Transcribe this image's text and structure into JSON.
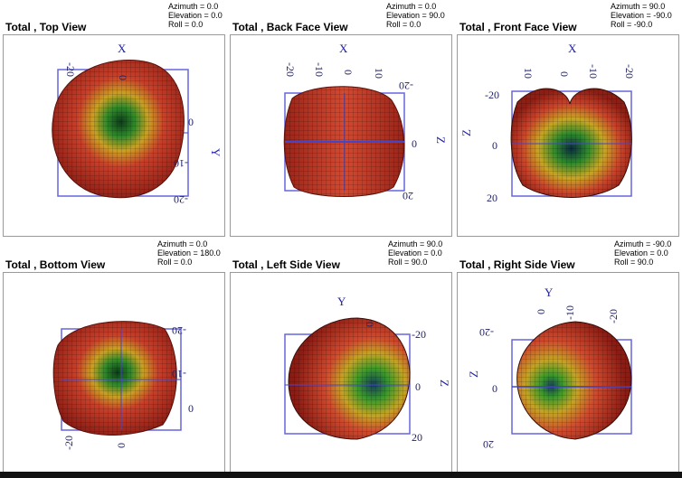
{
  "panels": [
    {
      "title": "Total , Top View",
      "l1": "Azimuth = 0.0",
      "l2": "Elevation = 0.0",
      "l3": "Roll = 0.0",
      "axis_a": "X",
      "axis_b": "Y",
      "ticks_a": [
        "-20",
        "0"
      ],
      "ticks_b": [
        "0",
        "-10",
        "-20"
      ]
    },
    {
      "title": "Total , Back Face View",
      "l1": "Azimuth = 0.0",
      "l2": "Elevation = 90.0",
      "l3": "Roll = 0.0",
      "axis_a": "X",
      "axis_b": "Z",
      "ticks_a": [
        "-20",
        "-10",
        "0",
        "10"
      ],
      "ticks_b": [
        "-20",
        "0",
        "20"
      ]
    },
    {
      "title": "Total , Front Face View",
      "l1": "Azimuth = 90.0",
      "l2": "Elevation = -90.0",
      "l3": "Roll = -90.0",
      "axis_a": "X",
      "axis_b": "Z",
      "ticks_a": [
        "10",
        "0",
        "-10",
        "-20"
      ],
      "ticks_b": [
        "-20",
        "0",
        "20"
      ]
    },
    {
      "title": "Total , Bottom View",
      "l1": "Azimuth = 0.0",
      "l2": "Elevation = 180.0",
      "l3": "Roll = 0.0",
      "axis_a": "X",
      "axis_b": "Y",
      "ticks_a": [
        "-20",
        "0"
      ],
      "ticks_b": [
        "-20",
        "-10",
        "0"
      ]
    },
    {
      "title": "Total , Left Side View",
      "l1": "Azimuth = 90.0",
      "l2": "Elevation = 0.0",
      "l3": "Roll = 90.0",
      "axis_a": "Y",
      "axis_b": "Z",
      "ticks_a": [
        "0"
      ],
      "ticks_b": [
        "-20",
        "0",
        "20"
      ]
    },
    {
      "title": "Total , Right Side View",
      "l1": "Azimuth = -90.0",
      "l2": "Elevation = 0.0",
      "l3": "Roll = 90.0",
      "axis_a": "Y",
      "axis_b": "Z",
      "ticks_a": [
        "0",
        "-10",
        "-20"
      ],
      "ticks_b": [
        "-20",
        "0",
        "20"
      ]
    }
  ],
  "colors": {
    "shape_red": "#c0392b",
    "shape_green": "#3a9a2a",
    "shape_blue": "#1e4f8f",
    "axis": "#4444cc"
  }
}
